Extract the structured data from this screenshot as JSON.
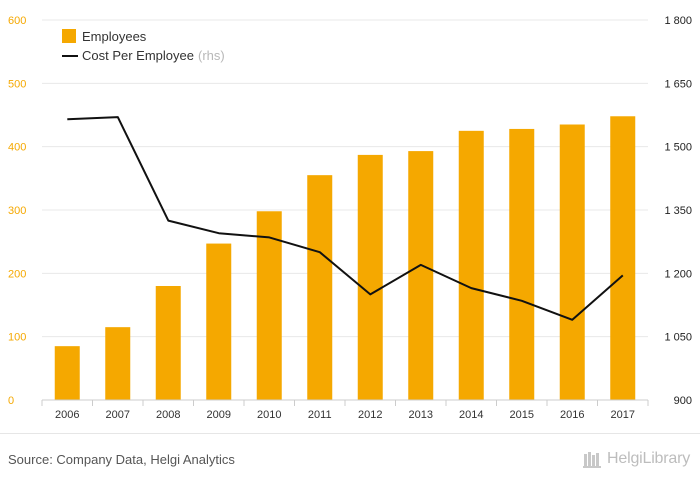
{
  "chart_data": {
    "type": "bar",
    "categories": [
      "2006",
      "2007",
      "2008",
      "2009",
      "2010",
      "2011",
      "2012",
      "2013",
      "2014",
      "2015",
      "2016",
      "2017"
    ],
    "series": [
      {
        "name": "Employees",
        "kind": "bar",
        "axis": "left",
        "color": "#f5a800",
        "values": [
          85,
          115,
          180,
          247,
          298,
          355,
          387,
          393,
          425,
          428,
          435,
          448
        ]
      },
      {
        "name": "Cost Per Employee",
        "suffix": "(rhs)",
        "kind": "line",
        "axis": "right",
        "color": "#111111",
        "values": [
          1565,
          1570,
          1325,
          1295,
          1285,
          1250,
          1150,
          1220,
          1165,
          1135,
          1090,
          1195
        ]
      }
    ],
    "y_left": {
      "min": 0,
      "max": 600,
      "ticks": [
        "0",
        "100",
        "200",
        "300",
        "400",
        "500",
        "600"
      ],
      "color": "#f5a800"
    },
    "y_right": {
      "min": 900,
      "max": 1800,
      "ticks": [
        "900",
        "1 050",
        "1 200",
        "1 350",
        "1 500",
        "1 650",
        "1 800"
      ]
    },
    "legend_position": "top-left",
    "grid": "horizontal"
  },
  "footer": {
    "source": "Source: Company Data, Helgi Analytics",
    "logo_text": "HelgiLibrary"
  }
}
